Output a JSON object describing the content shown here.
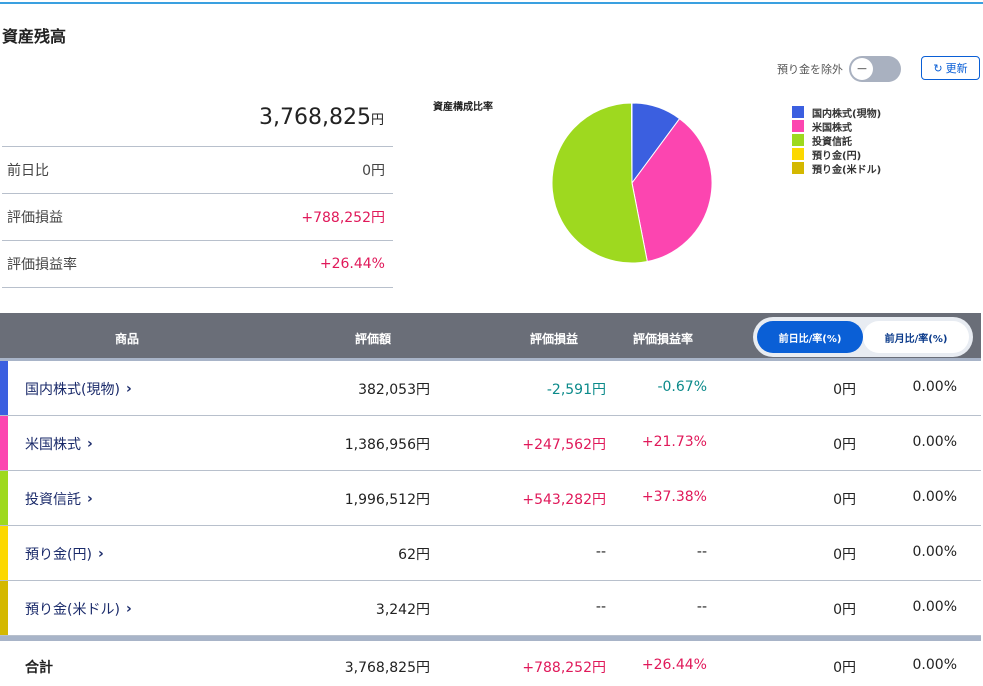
{
  "title": "資産残高",
  "controls": {
    "exclude_deposit_label": "預り金を除外",
    "refresh_label": "更新"
  },
  "summary": {
    "total": "3,768,825",
    "yen": "円",
    "rows": [
      {
        "label": "前日比",
        "value": "0円",
        "tone": ""
      },
      {
        "label": "評価損益",
        "value": "+788,252円",
        "tone": "pos"
      },
      {
        "label": "評価損益率",
        "value": "+26.44%",
        "tone": "pos"
      }
    ]
  },
  "pie": {
    "title": "資産構成比率"
  },
  "chart_data": {
    "type": "pie",
    "title": "資産構成比率",
    "labels": [
      "国内株式(現物)",
      "米国株式",
      "投資信託",
      "預り金(円)",
      "預り金(米ドル)"
    ],
    "values": [
      382053,
      1386956,
      1996512,
      62,
      3242
    ],
    "colors": [
      "#3b5fe0",
      "#fc45b0",
      "#9ed91f",
      "#fcd800",
      "#d4b800"
    ],
    "legend": "right"
  },
  "table": {
    "headers": [
      "商品",
      "評価額",
      "評価損益",
      "評価損益率"
    ],
    "toggle": [
      "前日比/率(%)",
      "前月比/率(%)"
    ],
    "rows": [
      {
        "name": "国内株式(現物)",
        "value": "382,053円",
        "pl": "-2,591円",
        "rate": "-0.67%",
        "tone": "neg",
        "day": "0円",
        "dayrate": "0.00%"
      },
      {
        "name": "米国株式",
        "value": "1,386,956円",
        "pl": "+247,562円",
        "rate": "+21.73%",
        "tone": "pos",
        "day": "0円",
        "dayrate": "0.00%"
      },
      {
        "name": "投資信託",
        "value": "1,996,512円",
        "pl": "+543,282円",
        "rate": "+37.38%",
        "tone": "pos",
        "day": "0円",
        "dayrate": "0.00%"
      },
      {
        "name": "預り金(円)",
        "value": "62円",
        "pl": "--",
        "rate": "--",
        "tone": "",
        "day": "0円",
        "dayrate": "0.00%"
      },
      {
        "name": "預り金(米ドル)",
        "value": "3,242円",
        "pl": "--",
        "rate": "--",
        "tone": "",
        "day": "0円",
        "dayrate": "0.00%"
      }
    ],
    "total": {
      "name": "合計",
      "value": "3,768,825円",
      "pl": "+788,252円",
      "rate": "+26.44%",
      "day": "0円",
      "dayrate": "0.00%"
    }
  }
}
